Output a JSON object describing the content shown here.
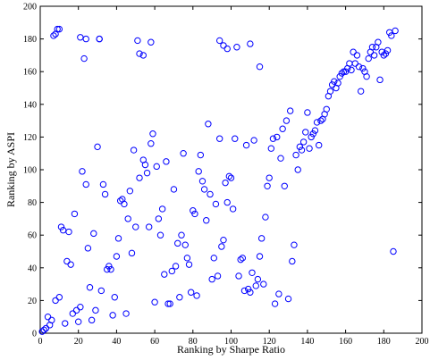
{
  "chart_data": {
    "type": "scatter",
    "xlabel": "Ranking by Sharpe Ratio",
    "ylabel": "Ranking by ASPI",
    "xlim": [
      0,
      200
    ],
    "ylim": [
      0,
      200
    ],
    "xticks": [
      0,
      20,
      40,
      60,
      80,
      100,
      120,
      140,
      160,
      180,
      200
    ],
    "yticks": [
      0,
      20,
      40,
      60,
      80,
      100,
      120,
      140,
      160,
      180,
      200
    ],
    "marker": "open-circle",
    "marker_color": "#0000ff",
    "grid": false,
    "box": true,
    "series": [
      {
        "x": [
          1,
          2,
          3,
          4,
          5,
          6,
          7,
          8,
          9,
          10,
          11,
          12,
          13,
          14,
          15,
          16,
          17,
          18,
          19,
          20,
          21,
          22,
          23,
          24,
          25,
          26,
          27,
          28,
          29,
          30,
          31,
          32,
          33,
          34,
          35,
          36,
          37,
          38,
          39,
          40,
          41,
          42,
          43,
          44,
          45,
          46,
          47,
          48,
          49,
          50,
          52,
          54,
          55,
          56,
          57,
          58,
          59,
          60,
          61,
          62,
          63,
          64,
          65,
          66,
          67,
          68,
          69,
          70,
          71,
          72,
          73,
          74,
          75,
          76,
          77,
          78,
          79,
          80,
          81,
          82,
          83,
          84,
          85,
          86,
          87,
          88,
          89,
          90,
          91,
          92,
          93,
          94,
          95,
          96,
          97,
          98,
          99,
          100,
          101,
          102,
          103,
          104,
          105,
          106,
          107,
          108,
          109,
          110,
          111,
          112,
          113,
          114,
          115,
          116,
          117,
          118,
          119,
          120,
          121,
          122,
          123,
          124,
          125,
          126,
          127,
          128,
          129,
          130,
          131,
          132,
          133,
          134,
          135,
          136,
          137,
          138,
          139,
          140,
          141,
          142,
          143,
          144,
          145,
          146,
          147,
          148,
          149,
          150,
          151,
          152,
          153,
          154,
          155,
          156,
          157,
          158,
          159,
          160,
          161,
          162,
          163,
          164,
          165,
          166,
          167,
          168,
          169,
          170,
          171,
          172,
          173,
          174,
          175,
          176,
          177,
          178,
          179,
          180,
          181,
          182,
          183,
          184,
          185,
          186,
          8,
          10,
          21,
          24,
          31,
          51,
          52,
          54,
          58,
          94,
          96,
          98,
          110,
          115
        ],
        "y": [
          1,
          2,
          3,
          10,
          5,
          8,
          182,
          20,
          186,
          22,
          65,
          63,
          6,
          44,
          62,
          42,
          12,
          73,
          14,
          7,
          16,
          99,
          168,
          91,
          52,
          28,
          8,
          61,
          14,
          114,
          180,
          26,
          91,
          85,
          39,
          41,
          39,
          11,
          22,
          47,
          58,
          81,
          82,
          79,
          12,
          70,
          87,
          49,
          112,
          65,
          95,
          106,
          103,
          98,
          65,
          116,
          122,
          19,
          102,
          70,
          60,
          76,
          36,
          105,
          18,
          18,
          38,
          88,
          41,
          55,
          22,
          60,
          110,
          54,
          46,
          42,
          25,
          75,
          73,
          23,
          99,
          109,
          93,
          88,
          69,
          128,
          85,
          33,
          46,
          79,
          35,
          119,
          53,
          57,
          92,
          80,
          96,
          95,
          76,
          119,
          175,
          35,
          45,
          46,
          26,
          115,
          27,
          25,
          37,
          118,
          29,
          33,
          47,
          58,
          30,
          71,
          90,
          95,
          113,
          119,
          18,
          120,
          24,
          107,
          125,
          90,
          130,
          21,
          136,
          44,
          54,
          109,
          100,
          114,
          112,
          117,
          123,
          135,
          113,
          120,
          122,
          124,
          129,
          115,
          130,
          131,
          134,
          137,
          145,
          148,
          152,
          154,
          150,
          153,
          157,
          159,
          160,
          160,
          162,
          165,
          161,
          172,
          165,
          170,
          163,
          148,
          162,
          160,
          157,
          168,
          172,
          175,
          170,
          175,
          178,
          155,
          172,
          170,
          171,
          173,
          184,
          182,
          50,
          185,
          183,
          186,
          181,
          180,
          180,
          179,
          171,
          170,
          178,
          179,
          176,
          174,
          177,
          163
        ]
      }
    ]
  }
}
